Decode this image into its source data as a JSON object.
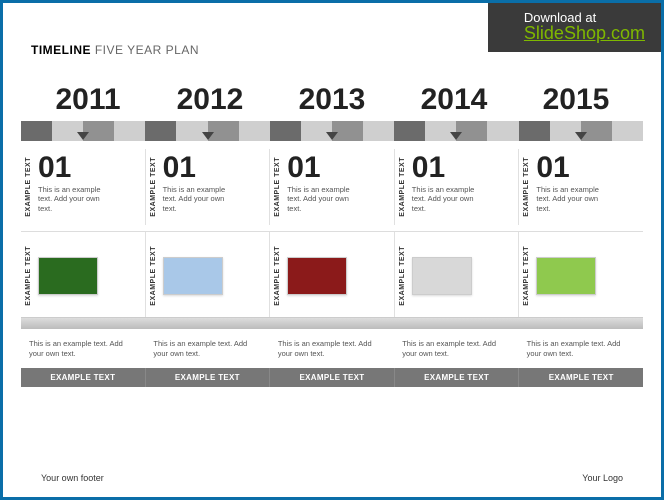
{
  "download": {
    "label": "Download at",
    "link_text": "SlideShop.com"
  },
  "title": {
    "bold": "TIMELINE",
    "light": "FIVE YEAR PLAN"
  },
  "years": [
    "2011",
    "2012",
    "2013",
    "2014",
    "2015"
  ],
  "bar_colors": [
    "#6b6b6b",
    "#cfcfcf",
    "#919191",
    "#cfcfcf",
    "#6b6b6b",
    "#cfcfcf",
    "#919191",
    "#cfcfcf",
    "#6b6b6b",
    "#cfcfcf",
    "#919191",
    "#cfcfcf",
    "#6b6b6b",
    "#cfcfcf",
    "#919191",
    "#cfcfcf",
    "#6b6b6b",
    "#cfcfcf",
    "#919191",
    "#cfcfcf"
  ],
  "row1": {
    "vlabel": "EXAMPLE TEXT",
    "number": "01",
    "desc": "This is an example text. Add your own text."
  },
  "row2": {
    "vlabel": "EXAMPLE TEXT",
    "thumb_bg": [
      "#2a6b1f",
      "#a9c8e8",
      "#8b1a1a",
      "#d8d8d8",
      "#8fc94e"
    ]
  },
  "row3": {
    "desc": "This is an example text. Add your own text."
  },
  "labels_bar": "EXAMPLE TEXT",
  "footer": {
    "left": "Your own footer",
    "right": "Your Logo"
  },
  "layout": {
    "columns": 5
  }
}
